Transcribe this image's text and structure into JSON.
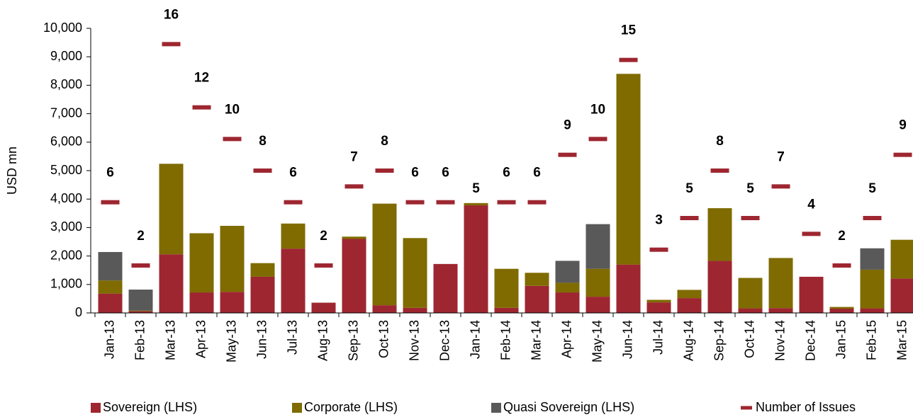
{
  "chart_data": {
    "type": "bar",
    "stacked": true,
    "ylabel": "USD mn",
    "categories": [
      "Jan-13",
      "Feb-13",
      "Mar-13",
      "Apr-13",
      "May-13",
      "Jun-13",
      "Jul-13",
      "Aug-13",
      "Sep-13",
      "Oct-13",
      "Nov-13",
      "Dec-13",
      "Jan-14",
      "Feb-14",
      "Mar-14",
      "Apr-14",
      "May-14",
      "Jun-14",
      "Jul-14",
      "Aug-14",
      "Sep-14",
      "Oct-14",
      "Nov-14",
      "Dec-14",
      "Jan-15",
      "Feb-15",
      "Mar-15"
    ],
    "series": [
      {
        "name": "Sovereign (LHS)",
        "color": "#9e2630",
        "values": [
          680,
          60,
          2060,
          720,
          740,
          1270,
          2260,
          360,
          2600,
          270,
          180,
          1720,
          3780,
          180,
          950,
          720,
          570,
          1700,
          370,
          520,
          1830,
          160,
          170,
          1270,
          150,
          160,
          1210
        ]
      },
      {
        "name": "Corporate (LHS)",
        "color": "#7f6b00",
        "values": [
          460,
          20,
          3180,
          2080,
          2320,
          480,
          880,
          0,
          80,
          3570,
          2450,
          0,
          80,
          1370,
          460,
          340,
          980,
          6700,
          90,
          290,
          1850,
          1070,
          1760,
          0,
          60,
          1360,
          1360
        ]
      },
      {
        "name": "Quasi Sovereign (LHS)",
        "color": "#595959",
        "values": [
          1000,
          740,
          0,
          0,
          0,
          0,
          0,
          0,
          0,
          0,
          0,
          0,
          0,
          0,
          0,
          770,
          1570,
          0,
          0,
          0,
          0,
          0,
          0,
          0,
          0,
          750,
          0
        ]
      },
      {
        "name": "Number of Issues",
        "color": "#9e2630",
        "axis": "y2",
        "style": "dash",
        "data_labels": true,
        "values": [
          6,
          2,
          16,
          12,
          10,
          8,
          6,
          2,
          7,
          8,
          6,
          6,
          5,
          6,
          6,
          9,
          10,
          15,
          3,
          5,
          8,
          5,
          7,
          4,
          2,
          5,
          9
        ]
      }
    ],
    "ylim": [
      0,
      10000
    ],
    "yticks": [
      0,
      {
        "value": 1000,
        "label": "1,000"
      },
      {
        "value": 2000,
        "label": "2,000"
      },
      {
        "value": 3000,
        "label": "3,000"
      },
      {
        "value": 4000,
        "label": "4,000"
      },
      {
        "value": 5000,
        "label": "5,000"
      },
      {
        "value": 6000,
        "label": "6,000"
      },
      {
        "value": 7000,
        "label": "7,000"
      },
      {
        "value": 8000,
        "label": "8,000"
      },
      {
        "value": 9000,
        "label": "9,000"
      },
      {
        "value": 10000,
        "label": "10,000"
      }
    ],
    "y2lim": [
      -1,
      17
    ],
    "legend": "bottom"
  }
}
